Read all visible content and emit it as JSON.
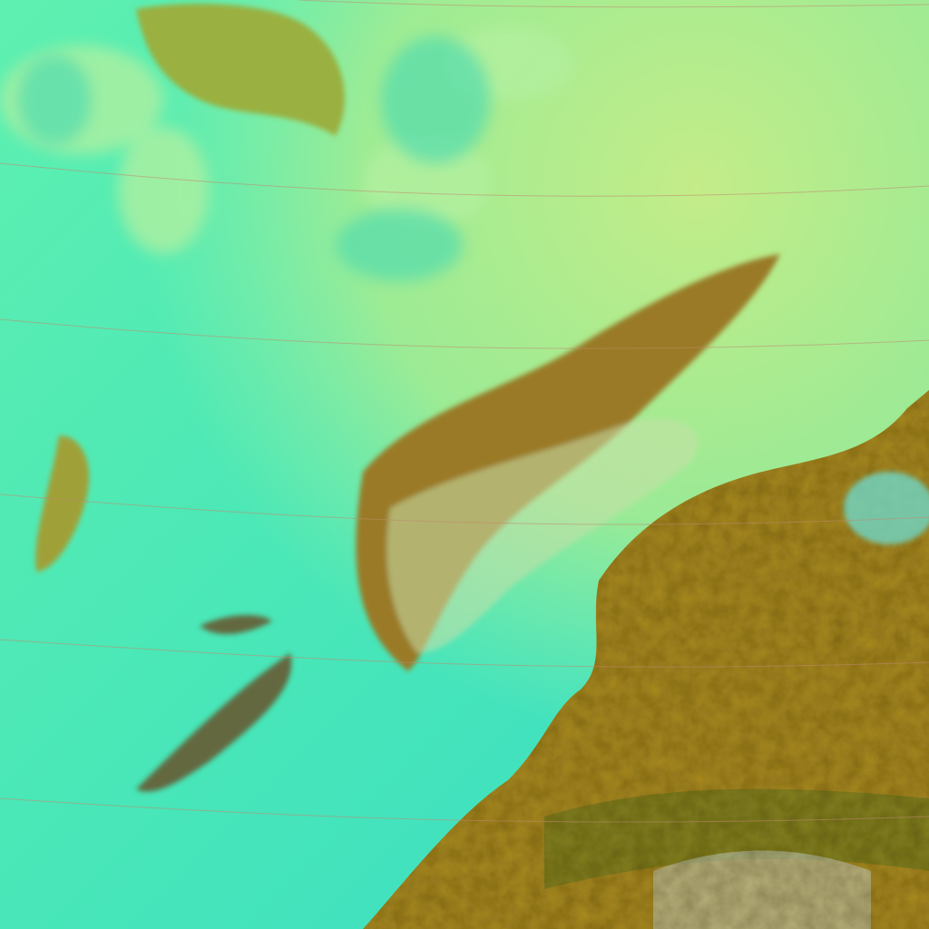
{
  "image": {
    "kind": "false-color satellite imagery",
    "colors": {
      "ocean": "#3fe3b8",
      "haze": "#b8ec8a",
      "cloud_land": "#a07a20",
      "land_dark": "#6a5a18",
      "grid_line": "#c08a70"
    }
  }
}
